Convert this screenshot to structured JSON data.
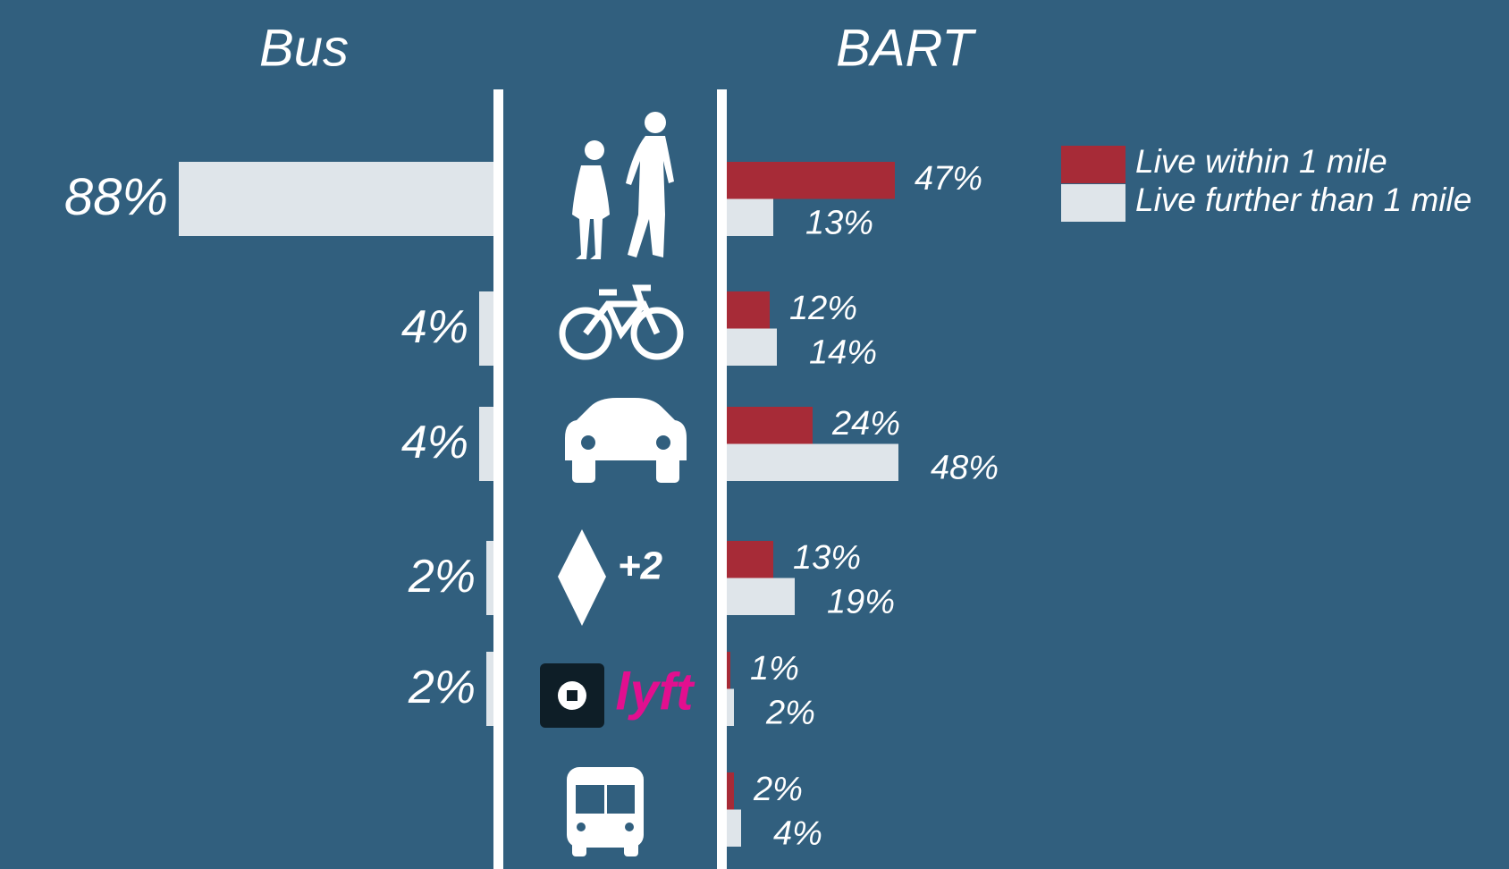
{
  "chart_data": {
    "type": "butterfly",
    "left": {
      "title": "Bus",
      "color": "#dfe5ea",
      "values": [
        88,
        4,
        4,
        2,
        2,
        null
      ],
      "value_labels": [
        "88%",
        "4%",
        "4%",
        "2%",
        "2%",
        null
      ]
    },
    "right": {
      "title": "BART",
      "series": [
        {
          "name": "Live within 1 mile",
          "color": "#a72b37",
          "values": [
            47,
            12,
            24,
            13,
            1,
            2
          ],
          "value_labels": [
            "47%",
            "12%",
            "24%",
            "13%",
            "1%",
            "2%"
          ]
        },
        {
          "name": "Live further than 1 mile",
          "color": "#dfe5ea",
          "values": [
            13,
            14,
            48,
            19,
            2,
            4
          ],
          "value_labels": [
            "13%",
            "14%",
            "48%",
            "19%",
            "2%",
            "4%"
          ]
        }
      ]
    },
    "legend": "top-right"
  }
}
